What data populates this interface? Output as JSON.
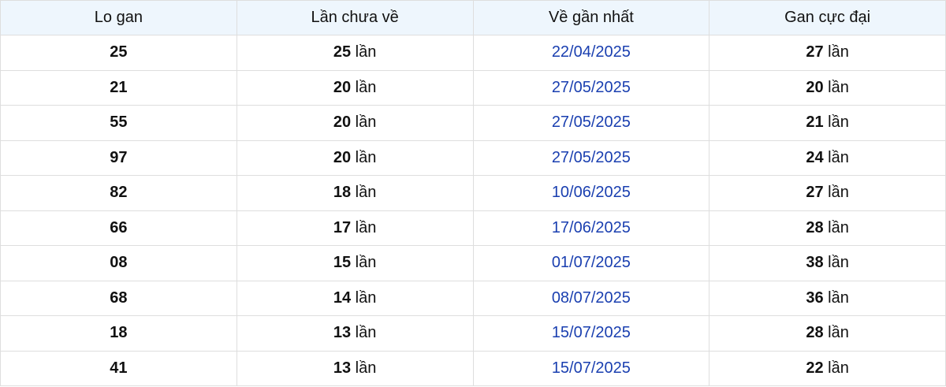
{
  "table": {
    "headers": [
      "Lo gan",
      "Lần chưa về",
      "Về gần nhất",
      "Gan cực đại"
    ],
    "unit": "lần",
    "colors": {
      "header_bg": "#eef6fd",
      "date": "#1a3fb0"
    },
    "rows": [
      {
        "lo": "25",
        "missed": "25",
        "last": "22/04/2025",
        "max": "27"
      },
      {
        "lo": "21",
        "missed": "20",
        "last": "27/05/2025",
        "max": "20"
      },
      {
        "lo": "55",
        "missed": "20",
        "last": "27/05/2025",
        "max": "21"
      },
      {
        "lo": "97",
        "missed": "20",
        "last": "27/05/2025",
        "max": "24"
      },
      {
        "lo": "82",
        "missed": "18",
        "last": "10/06/2025",
        "max": "27"
      },
      {
        "lo": "66",
        "missed": "17",
        "last": "17/06/2025",
        "max": "28"
      },
      {
        "lo": "08",
        "missed": "15",
        "last": "01/07/2025",
        "max": "38"
      },
      {
        "lo": "68",
        "missed": "14",
        "last": "08/07/2025",
        "max": "36"
      },
      {
        "lo": "18",
        "missed": "13",
        "last": "15/07/2025",
        "max": "28"
      },
      {
        "lo": "41",
        "missed": "13",
        "last": "15/07/2025",
        "max": "22"
      }
    ]
  }
}
